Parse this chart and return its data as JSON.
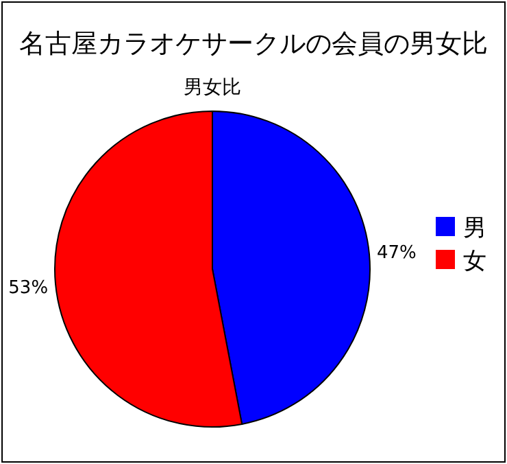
{
  "chart_data": {
    "type": "pie",
    "title": "名古屋カラオケサークルの会員の男女比",
    "subtitle": "男女比",
    "categories": [
      "男",
      "女"
    ],
    "values": [
      47,
      53
    ],
    "colors": [
      "#0000ff",
      "#ff0000"
    ],
    "value_labels": [
      "47%",
      "53%"
    ],
    "legend": "right"
  }
}
